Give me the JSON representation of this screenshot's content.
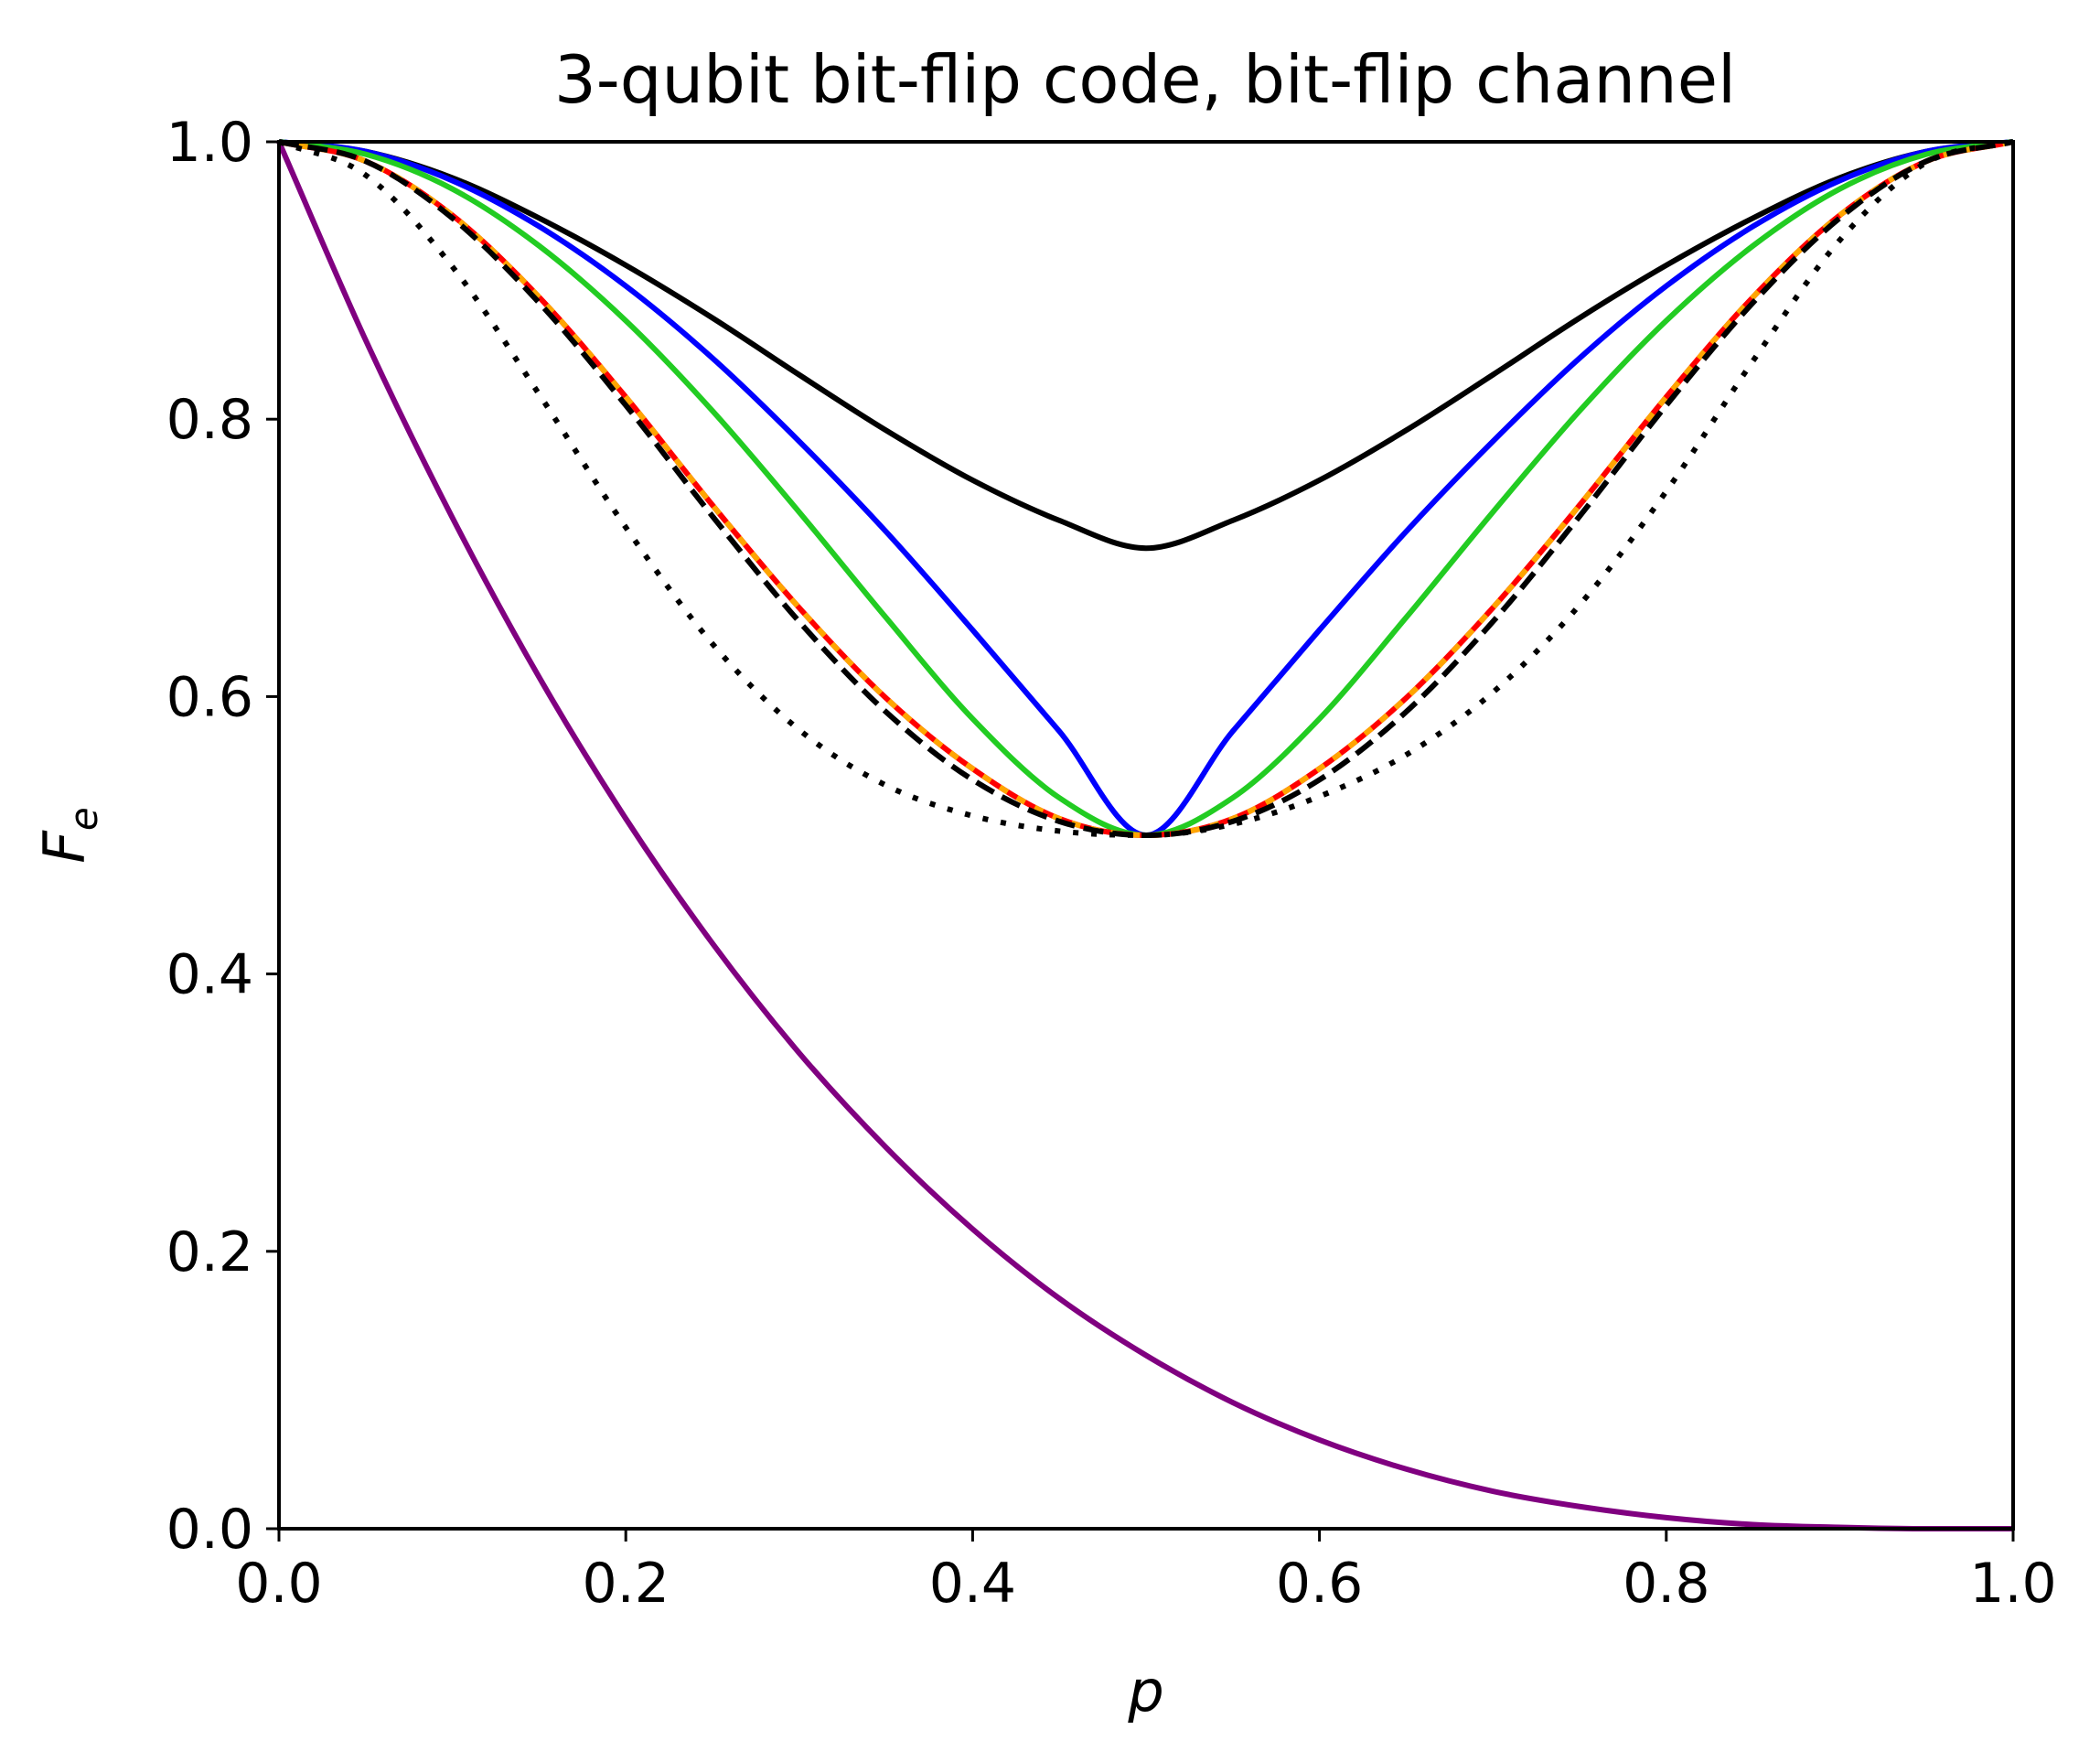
{
  "chart_data": {
    "type": "line",
    "title": "3-qubit bit-flip code, bit-flip channel",
    "xlabel": "p",
    "ylabel": "F",
    "ylabel_subscript": "e",
    "xlim": [
      0.0,
      1.0
    ],
    "ylim": [
      0.0,
      1.0
    ],
    "xticks": [
      "0.0",
      "0.2",
      "0.4",
      "0.6",
      "0.8",
      "1.0"
    ],
    "yticks": [
      "0.0",
      "0.2",
      "0.4",
      "0.6",
      "0.8",
      "1.0"
    ],
    "grid": false,
    "legend": "none",
    "x": [
      0.0,
      0.05,
      0.1,
      0.15,
      0.2,
      0.25,
      0.3,
      0.35,
      0.4,
      0.45,
      0.5,
      0.55,
      0.6,
      0.65,
      0.7,
      0.75,
      0.8,
      0.85,
      0.9,
      0.95,
      1.0
    ],
    "series": [
      {
        "color": "#800080",
        "style": "solid",
        "values": [
          1.0,
          0.857,
          0.729,
          0.614,
          0.512,
          0.422,
          0.343,
          0.275,
          0.216,
          0.166,
          0.125,
          0.091,
          0.064,
          0.043,
          0.027,
          0.016,
          0.008,
          0.003,
          0.001,
          0.0,
          0.0
        ]
      },
      {
        "color": "#000000",
        "style": "solid",
        "values": [
          1.0,
          0.993,
          0.974,
          0.945,
          0.911,
          0.873,
          0.832,
          0.792,
          0.756,
          0.727,
          0.707,
          0.727,
          0.756,
          0.792,
          0.832,
          0.873,
          0.911,
          0.945,
          0.974,
          0.993,
          1.0
        ]
      },
      {
        "color": "#0000ff",
        "style": "solid",
        "values": [
          1.0,
          0.993,
          0.972,
          0.939,
          0.896,
          0.844,
          0.784,
          0.719,
          0.648,
          0.575,
          0.5,
          0.575,
          0.648,
          0.719,
          0.784,
          0.844,
          0.896,
          0.939,
          0.972,
          0.993,
          1.0
        ]
      },
      {
        "color": "#22cc22",
        "style": "solid",
        "values": [
          1.0,
          0.991,
          0.966,
          0.925,
          0.871,
          0.806,
          0.733,
          0.657,
          0.584,
          0.527,
          0.5,
          0.527,
          0.584,
          0.657,
          0.733,
          0.806,
          0.871,
          0.925,
          0.966,
          0.991,
          1.0
        ]
      },
      {
        "color": "#ff0000",
        "style": "solid",
        "values": [
          1.0,
          0.986,
          0.947,
          0.888,
          0.816,
          0.738,
          0.664,
          0.599,
          0.548,
          0.512,
          0.5,
          0.512,
          0.548,
          0.599,
          0.664,
          0.738,
          0.816,
          0.888,
          0.947,
          0.986,
          1.0
        ]
      },
      {
        "color": "#ffa500",
        "style": "solid",
        "values": [
          1.0,
          0.986,
          0.947,
          0.888,
          0.816,
          0.738,
          0.664,
          0.599,
          0.548,
          0.512,
          0.5,
          0.512,
          0.548,
          0.599,
          0.664,
          0.738,
          0.816,
          0.888,
          0.947,
          0.986,
          1.0
        ]
      },
      {
        "color": "#000000",
        "style": "dashed",
        "values": [
          1.0,
          0.986,
          0.945,
          0.884,
          0.81,
          0.73,
          0.654,
          0.589,
          0.54,
          0.51,
          0.5,
          0.51,
          0.54,
          0.589,
          0.654,
          0.73,
          0.81,
          0.884,
          0.945,
          0.986,
          1.0
        ]
      },
      {
        "color": "#000000",
        "style": "dotted",
        "values": [
          1.0,
          0.976,
          0.91,
          0.818,
          0.722,
          0.638,
          0.576,
          0.536,
          0.514,
          0.503,
          0.5,
          0.508,
          0.528,
          0.558,
          0.603,
          0.666,
          0.748,
          0.842,
          0.929,
          0.985,
          1.0
        ]
      }
    ]
  }
}
